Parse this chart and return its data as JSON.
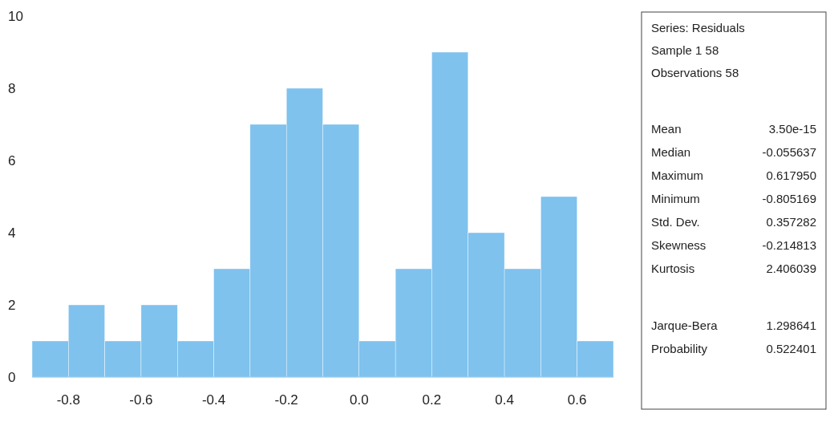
{
  "chart_data": {
    "type": "histogram",
    "bins": [
      -0.9,
      -0.8,
      -0.7,
      -0.6,
      -0.5,
      -0.4,
      -0.3,
      -0.2,
      -0.1,
      0.0,
      0.1,
      0.2,
      0.3,
      0.4,
      0.5,
      0.6,
      0.7
    ],
    "values": [
      1,
      2,
      1,
      2,
      1,
      3,
      7,
      8,
      7,
      1,
      3,
      9,
      4,
      3,
      5,
      1
    ],
    "color": "#7fc2ee",
    "xticks": [
      {
        "value": -0.8,
        "label": "-0.8"
      },
      {
        "value": -0.6,
        "label": "-0.6"
      },
      {
        "value": -0.4,
        "label": "-0.4"
      },
      {
        "value": -0.2,
        "label": "-0.2"
      },
      {
        "value": 0,
        "label": "0.0"
      },
      {
        "value": 0.2,
        "label": "0.2"
      },
      {
        "value": 0.4,
        "label": "0.4"
      },
      {
        "value": 0.6,
        "label": "0.6"
      }
    ],
    "xlim": [
      -0.9,
      0.7
    ],
    "ylim": [
      0,
      10
    ],
    "yticks": [
      0,
      2,
      4,
      6,
      8,
      10
    ],
    "annotations": [
      "Series: Residuals",
      "Sample 1 58",
      "Observations 58",
      "Mean",
      "3.50e-15",
      "Median",
      "-0.055637",
      "Maximum",
      "0.617950",
      "Minimum",
      "-0.805169",
      "Std. Dev.",
      "0.357282",
      "Skewness",
      "-0.214813",
      "Kurtosis",
      "2.406039",
      "Jarque-Bera",
      "1.298641",
      "Probability",
      "0.522401"
    ]
  }
}
